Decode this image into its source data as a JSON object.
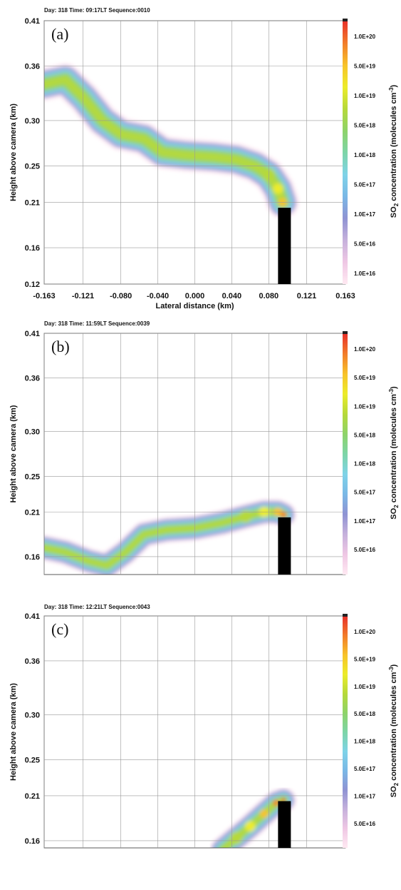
{
  "colorbar": {
    "title_main": "SO",
    "title_sub": "2",
    "title_rest": " concentration (molecules cm",
    "title_sup": "-3",
    "title_end": ")",
    "colors": [
      "#ffe9f2",
      "#efc7e4",
      "#c6b1dc",
      "#8f93d3",
      "#7ab8e6",
      "#7fd3e8",
      "#7dd5a8",
      "#8ed36a",
      "#b6d93a",
      "#ecec2a",
      "#f7c32a",
      "#f27d2a",
      "#e8322a"
    ]
  },
  "chart_data": [
    {
      "type": "heatmap",
      "panel_tag": "(a)",
      "header": "Day:  318 Time:  09:17LT   Sequence:0010",
      "xlabel": "Lateral distance (km)",
      "ylabel": "Height above camera (km)",
      "x_ticks": [
        "-0.163",
        "-0.121",
        "-0.080",
        "-0.040",
        "0.000",
        "0.040",
        "0.080",
        "0.121",
        "0.163"
      ],
      "y_ticks": [
        "0.41",
        "0.36",
        "0.30",
        "0.25",
        "0.21",
        "0.16",
        "0.12"
      ],
      "xlim": [
        -0.163,
        0.163
      ],
      "ylim": [
        0.12,
        0.41
      ],
      "colorbar_labels": [
        "1.0E+20",
        "5.0E+19",
        "1.0E+19",
        "5.0E+18",
        "1.0E+18",
        "5.0E+17",
        "1.0E+17",
        "5.0E+16",
        "1.0E+16"
      ],
      "grid": true,
      "chimney": {
        "x": 0.097,
        "top": 0.204
      },
      "plume_path": [
        [
          -0.163,
          0.34,
          0.45,
          3
        ],
        [
          -0.14,
          0.345,
          0.45,
          3
        ],
        [
          -0.12,
          0.325,
          0.45,
          4
        ],
        [
          -0.1,
          0.3,
          0.4,
          4
        ],
        [
          -0.08,
          0.285,
          0.4,
          5
        ],
        [
          -0.055,
          0.28,
          0.4,
          5
        ],
        [
          -0.035,
          0.265,
          0.38,
          6
        ],
        [
          -0.01,
          0.262,
          0.38,
          6
        ],
        [
          0.02,
          0.26,
          0.36,
          6
        ],
        [
          0.045,
          0.257,
          0.32,
          7
        ],
        [
          0.065,
          0.25,
          0.28,
          7
        ],
        [
          0.08,
          0.24,
          0.22,
          8
        ],
        [
          0.09,
          0.225,
          0.16,
          9
        ],
        [
          0.095,
          0.21,
          0.1,
          10
        ]
      ]
    },
    {
      "type": "heatmap",
      "panel_tag": "(b)",
      "header": "Day:  318 Time:  11:59LT   Sequence:0039",
      "xlabel": "",
      "ylabel": "Height above camera (km)",
      "x_ticks": [],
      "y_ticks": [
        "0.41",
        "0.36",
        "0.30",
        "0.25",
        "0.21",
        "0.16"
      ],
      "xlim": [
        -0.163,
        0.163
      ],
      "ylim": [
        0.14,
        0.41
      ],
      "colorbar_labels": [
        "1.0E+20",
        "5.0E+19",
        "1.0E+19",
        "5.0E+18",
        "1.0E+18",
        "5.0E+17",
        "1.0E+17",
        "5.0E+16"
      ],
      "grid": true,
      "chimney": {
        "x": 0.097,
        "top": 0.204
      },
      "plume_path": [
        [
          -0.163,
          0.17,
          0.45,
          3
        ],
        [
          -0.14,
          0.165,
          0.45,
          3
        ],
        [
          -0.115,
          0.155,
          0.45,
          4
        ],
        [
          -0.095,
          0.15,
          0.4,
          4
        ],
        [
          -0.075,
          0.165,
          0.36,
          5
        ],
        [
          -0.055,
          0.185,
          0.34,
          6
        ],
        [
          -0.03,
          0.19,
          0.34,
          6
        ],
        [
          0.0,
          0.192,
          0.32,
          6
        ],
        [
          0.03,
          0.198,
          0.3,
          7
        ],
        [
          0.055,
          0.205,
          0.26,
          8
        ],
        [
          0.075,
          0.21,
          0.22,
          9
        ],
        [
          0.09,
          0.21,
          0.16,
          10
        ],
        [
          0.096,
          0.207,
          0.1,
          11
        ]
      ]
    },
    {
      "type": "heatmap",
      "panel_tag": "(c)",
      "header": "Day:  318 Time:  12:21LT   Sequence:0043",
      "xlabel": "",
      "ylabel": "Height above camera (km)",
      "x_ticks": [],
      "y_ticks": [
        "0.41",
        "0.36",
        "0.30",
        "0.25",
        "0.21",
        "0.16"
      ],
      "xlim": [
        -0.163,
        0.163
      ],
      "ylim": [
        0.152,
        0.41
      ],
      "colorbar_labels": [
        "1.0E+20",
        "5.0E+19",
        "1.0E+19",
        "5.0E+18",
        "1.0E+18",
        "5.0E+17",
        "1.0E+17",
        "5.0E+16"
      ],
      "grid": true,
      "chimney": {
        "x": 0.097,
        "top": 0.204
      },
      "plume_path": [
        [
          0.03,
          0.15,
          0.26,
          7
        ],
        [
          0.045,
          0.163,
          0.24,
          8
        ],
        [
          0.06,
          0.176,
          0.22,
          9
        ],
        [
          0.075,
          0.19,
          0.2,
          10
        ],
        [
          0.088,
          0.202,
          0.16,
          11
        ],
        [
          0.096,
          0.205,
          0.1,
          12
        ]
      ]
    }
  ]
}
